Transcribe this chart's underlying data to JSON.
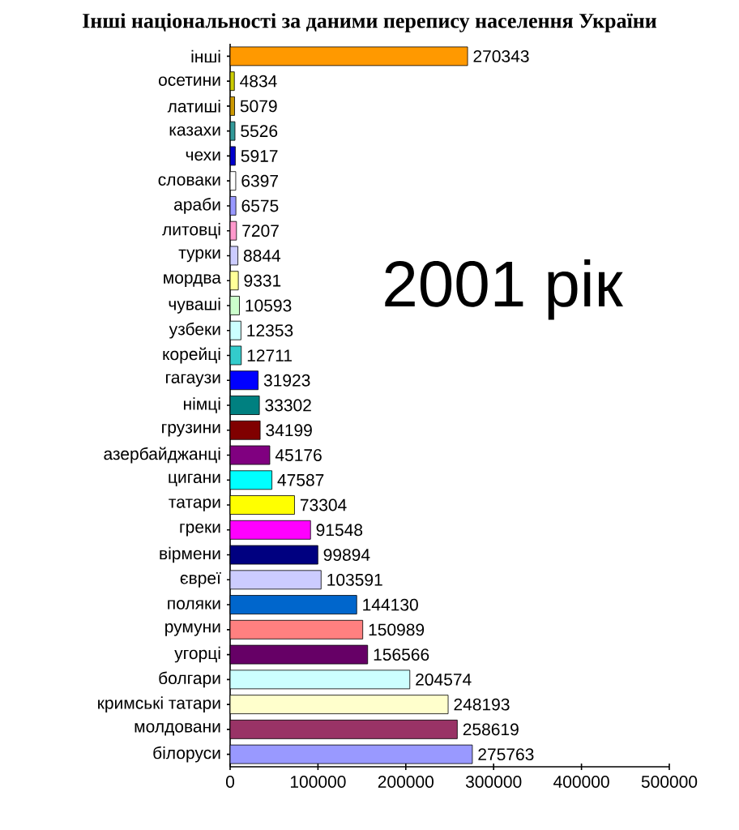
{
  "chart_data": {
    "type": "bar",
    "orientation": "horizontal",
    "title": "Інші національності за даними перепису населення України",
    "categories": [
      "інші",
      "осетини",
      "латиші",
      "казахи",
      "чехи",
      "словаки",
      "араби",
      "литовці",
      "турки",
      "мордва",
      "чуваші",
      "узбеки",
      "корейці",
      "гагаузи",
      "німці",
      "грузини",
      "азербайджанці",
      "цигани",
      "татари",
      "греки",
      "вірмени",
      "євреї",
      "поляки",
      "румуни",
      "угорці",
      "болгари",
      "кримські татари",
      "молдовани",
      "білоруси"
    ],
    "values": [
      270343,
      4834,
      5079,
      5526,
      5917,
      6397,
      6575,
      7207,
      8844,
      9331,
      10593,
      12353,
      12711,
      31923,
      33302,
      34199,
      45176,
      47587,
      73304,
      91548,
      99894,
      103591,
      144130,
      150989,
      156566,
      204574,
      248193,
      258619,
      275763
    ],
    "colors": [
      "#ff9900",
      "#cccc00",
      "#cc9900",
      "#339999",
      "#0000cc",
      "#ffffff",
      "#9999ff",
      "#ff99cc",
      "#ccccff",
      "#ffff99",
      "#ccffcc",
      "#ccffff",
      "#33cccc",
      "#0000ff",
      "#008080",
      "#800000",
      "#800080",
      "#00ffff",
      "#ffff00",
      "#ff00ff",
      "#000080",
      "#ccccff",
      "#0066cc",
      "#ff8080",
      "#660066",
      "#ccffff",
      "#ffffcc",
      "#993366",
      "#9999ff"
    ],
    "data_labels": true,
    "xlim": [
      0,
      500000
    ],
    "xticks": [
      0,
      100000,
      200000,
      300000,
      400000,
      500000
    ],
    "annotations": [
      "2001 рік"
    ]
  }
}
